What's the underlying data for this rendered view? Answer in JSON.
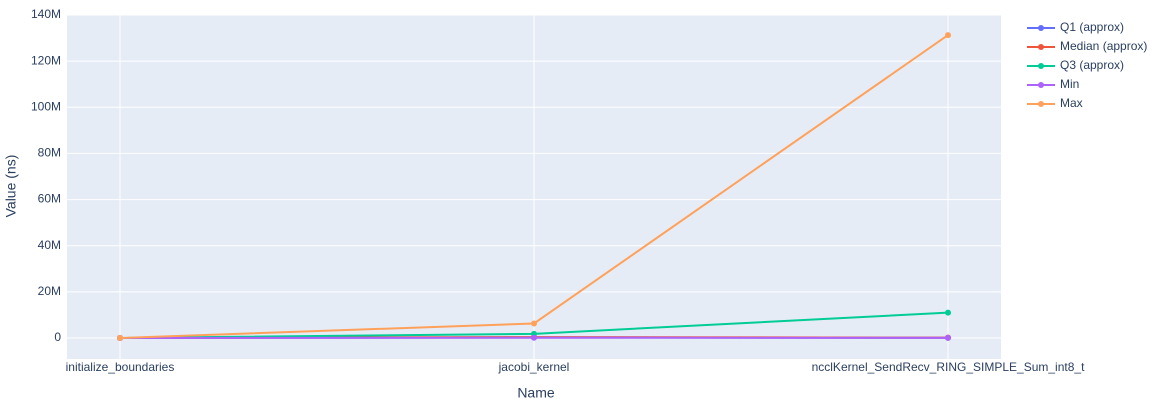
{
  "chart_data": {
    "type": "line",
    "x_label": "Name",
    "y_label": "Value (ns)",
    "categories": [
      "initialize_boundaries",
      "jacobi_kernel",
      "ncclKernel_SendRecv_RING_SIMPLE_Sum_int8_t"
    ],
    "series": [
      {
        "name": "Q1 (approx)",
        "color": "#636efa",
        "values": [
          0,
          300000,
          100000
        ]
      },
      {
        "name": "Median (approx)",
        "color": "#ef553b",
        "values": [
          0,
          400000,
          150000
        ]
      },
      {
        "name": "Q3 (approx)",
        "color": "#00cc96",
        "values": [
          0,
          1800000,
          11000000
        ]
      },
      {
        "name": "Min",
        "color": "#ab63fa",
        "values": [
          0,
          100000,
          50000
        ]
      },
      {
        "name": "Max",
        "color": "#ffa15a",
        "values": [
          0,
          6300000,
          131300000
        ]
      }
    ],
    "ylim": [
      -9100000,
      140000000
    ],
    "yticks": [
      0,
      {
        "value": 20000000,
        "label": "20M"
      },
      {
        "value": 40000000,
        "label": "40M"
      },
      {
        "value": 60000000,
        "label": "60M"
      },
      {
        "value": 80000000,
        "label": "80M"
      },
      {
        "value": 100000000,
        "label": "100M"
      },
      {
        "value": 120000000,
        "label": "120M"
      },
      {
        "value": 140000000,
        "label": "140M"
      }
    ],
    "grid": true,
    "legend": "right"
  }
}
